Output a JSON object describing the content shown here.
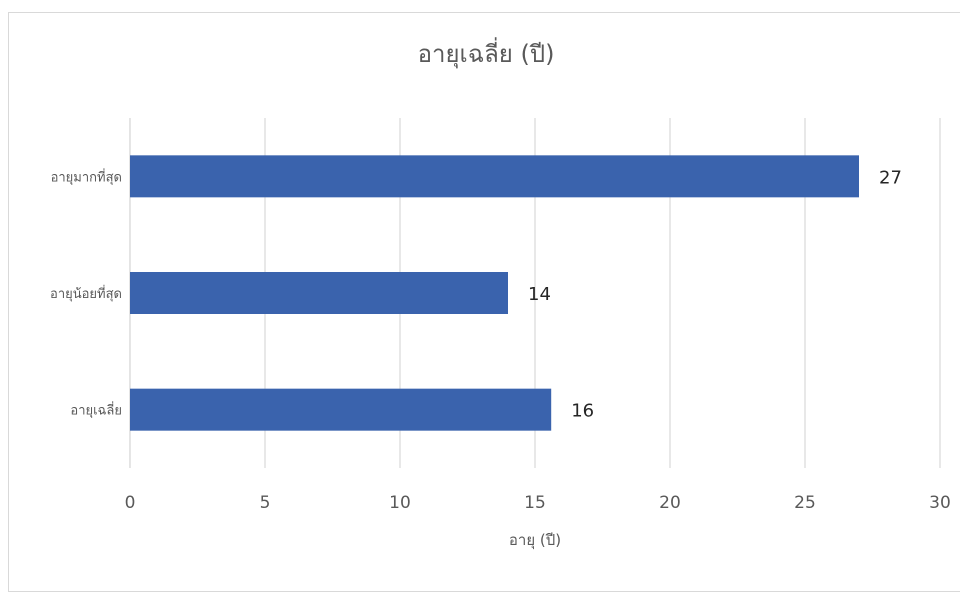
{
  "chart_data": {
    "type": "bar",
    "orientation": "horizontal",
    "title": "อายุเฉลี่ย (ปี)",
    "xlabel": "อายุ (ปี)",
    "ylabel": "",
    "categories": [
      "อายุมากที่สุด",
      "อายุน้อยที่สุด",
      "อายุเฉลี่ย"
    ],
    "values": [
      27,
      14,
      15.6
    ],
    "data_labels": [
      "27",
      "14",
      "16"
    ],
    "xlim": [
      0,
      30
    ],
    "x_ticks": [
      "0",
      "5",
      "10",
      "15",
      "20",
      "25",
      "30"
    ],
    "grid": "vertical",
    "legend": "none",
    "bar_color": "#3a63ad",
    "grid_color": "#d9d9d9"
  }
}
